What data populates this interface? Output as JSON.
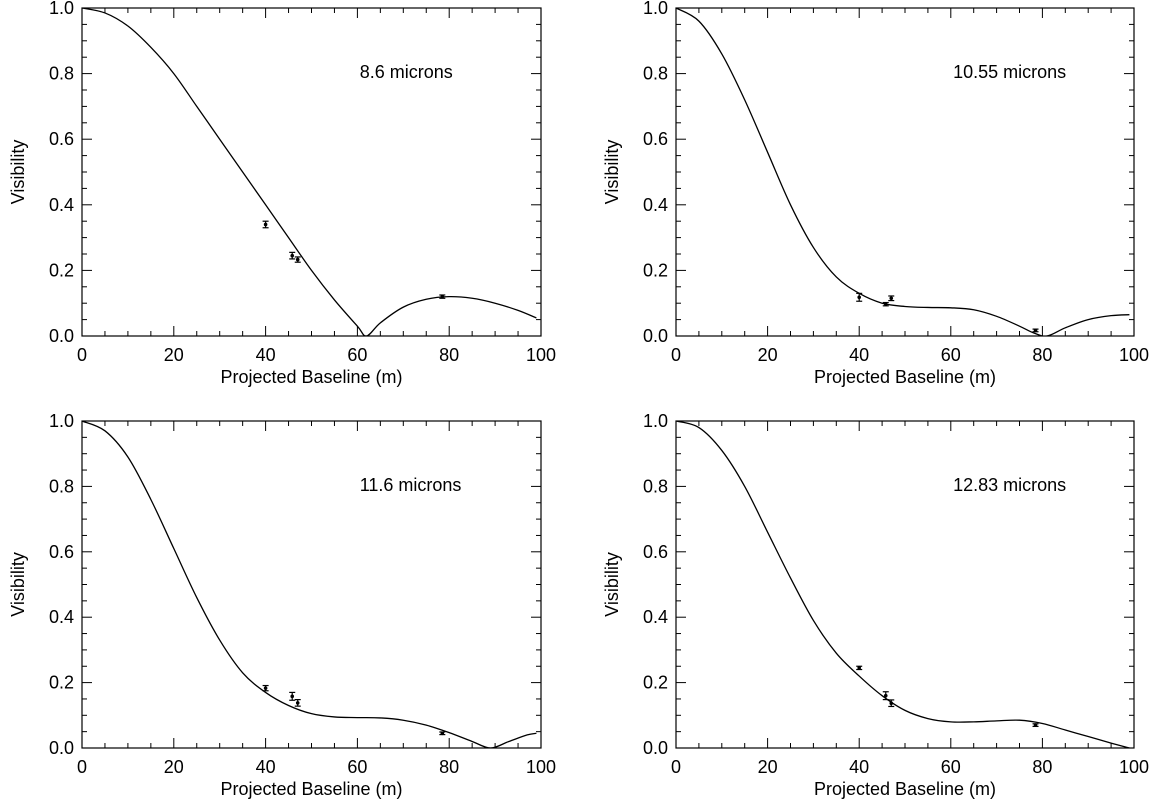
{
  "chart_data": [
    {
      "type": "line",
      "annotation": "8.6 microns",
      "xlabel": "Projected Baseline (m)",
      "ylabel": "Visibility",
      "xlim": [
        0,
        100
      ],
      "ylim": [
        0,
        1.0
      ],
      "xticks": [
        "0",
        "20",
        "40",
        "60",
        "80",
        "100"
      ],
      "yticks": [
        "0.0",
        "0.2",
        "0.4",
        "0.6",
        "0.8",
        "1.0"
      ],
      "model": {
        "x": [
          0,
          5,
          10,
          15,
          20,
          25,
          30,
          35,
          40,
          45,
          50,
          55,
          60,
          62,
          65,
          70,
          75,
          80,
          85,
          90,
          95,
          99
        ],
        "y": [
          1.0,
          0.985,
          0.945,
          0.88,
          0.8,
          0.7,
          0.6,
          0.5,
          0.4,
          0.3,
          0.2,
          0.11,
          0.03,
          0.0,
          0.04,
          0.088,
          0.112,
          0.12,
          0.115,
          0.1,
          0.078,
          0.055
        ]
      },
      "points": [
        {
          "x": 40,
          "y": 0.34,
          "err": 0.01
        },
        {
          "x": 45.8,
          "y": 0.245,
          "err": 0.01
        },
        {
          "x": 47,
          "y": 0.233,
          "err": 0.008
        },
        {
          "x": 78.5,
          "y": 0.12,
          "err": 0.005
        }
      ]
    },
    {
      "type": "line",
      "annotation": "10.55 microns",
      "xlabel": "Projected Baseline (m)",
      "ylabel": "Visibility",
      "xlim": [
        0,
        100
      ],
      "ylim": [
        0,
        1.0
      ],
      "xticks": [
        "0",
        "20",
        "40",
        "60",
        "80",
        "100"
      ],
      "yticks": [
        "0.0",
        "0.2",
        "0.4",
        "0.6",
        "0.8",
        "1.0"
      ],
      "model": {
        "x": [
          0,
          5,
          10,
          15,
          20,
          25,
          30,
          35,
          40,
          45,
          50,
          55,
          60,
          65,
          70,
          75,
          78,
          81,
          85,
          90,
          95,
          99
        ],
        "y": [
          1.0,
          0.96,
          0.86,
          0.72,
          0.56,
          0.4,
          0.27,
          0.18,
          0.13,
          0.1,
          0.09,
          0.087,
          0.086,
          0.08,
          0.06,
          0.03,
          0.01,
          0.0,
          0.025,
          0.05,
          0.062,
          0.065
        ]
      },
      "points": [
        {
          "x": 40,
          "y": 0.118,
          "err": 0.012
        },
        {
          "x": 45.8,
          "y": 0.097,
          "err": 0.005
        },
        {
          "x": 47,
          "y": 0.115,
          "err": 0.007
        },
        {
          "x": 78.5,
          "y": 0.017,
          "err": 0.004
        }
      ]
    },
    {
      "type": "line",
      "annotation": "11.6 microns",
      "xlabel": "Projected Baseline (m)",
      "ylabel": "Visibility",
      "xlim": [
        0,
        100
      ],
      "ylim": [
        0,
        1.0
      ],
      "xticks": [
        "0",
        "20",
        "40",
        "60",
        "80",
        "100"
      ],
      "yticks": [
        "0.0",
        "0.2",
        "0.4",
        "0.6",
        "0.8",
        "1.0"
      ],
      "model": {
        "x": [
          0,
          5,
          10,
          15,
          20,
          25,
          30,
          35,
          40,
          45,
          50,
          55,
          60,
          65,
          70,
          75,
          80,
          85,
          89,
          93,
          97,
          99
        ],
        "y": [
          1.0,
          0.97,
          0.89,
          0.76,
          0.61,
          0.46,
          0.33,
          0.23,
          0.17,
          0.13,
          0.105,
          0.095,
          0.093,
          0.092,
          0.085,
          0.07,
          0.047,
          0.02,
          0.0,
          0.02,
          0.04,
          0.045
        ]
      },
      "points": [
        {
          "x": 40,
          "y": 0.183,
          "err": 0.008
        },
        {
          "x": 45.8,
          "y": 0.158,
          "err": 0.012
        },
        {
          "x": 47,
          "y": 0.138,
          "err": 0.01
        },
        {
          "x": 78.5,
          "y": 0.045,
          "err": 0.004
        }
      ]
    },
    {
      "type": "line",
      "annotation": "12.83 microns",
      "xlabel": "Projected Baseline (m)",
      "ylabel": "Visibility",
      "xlim": [
        0,
        100
      ],
      "ylim": [
        0,
        1.0
      ],
      "xticks": [
        "0",
        "20",
        "40",
        "60",
        "80",
        "100"
      ],
      "yticks": [
        "0.0",
        "0.2",
        "0.4",
        "0.6",
        "0.8",
        "1.0"
      ],
      "model": {
        "x": [
          0,
          5,
          10,
          15,
          20,
          25,
          30,
          35,
          40,
          45,
          50,
          55,
          60,
          65,
          70,
          75,
          80,
          85,
          90,
          95,
          99
        ],
        "y": [
          1.0,
          0.98,
          0.91,
          0.8,
          0.66,
          0.52,
          0.39,
          0.29,
          0.22,
          0.16,
          0.115,
          0.09,
          0.08,
          0.08,
          0.083,
          0.085,
          0.075,
          0.055,
          0.035,
          0.015,
          0.0
        ]
      },
      "points": [
        {
          "x": 40,
          "y": 0.245,
          "err": 0.005
        },
        {
          "x": 45.8,
          "y": 0.16,
          "err": 0.012
        },
        {
          "x": 47,
          "y": 0.137,
          "err": 0.01
        },
        {
          "x": 78.5,
          "y": 0.07,
          "err": 0.004
        }
      ]
    }
  ]
}
